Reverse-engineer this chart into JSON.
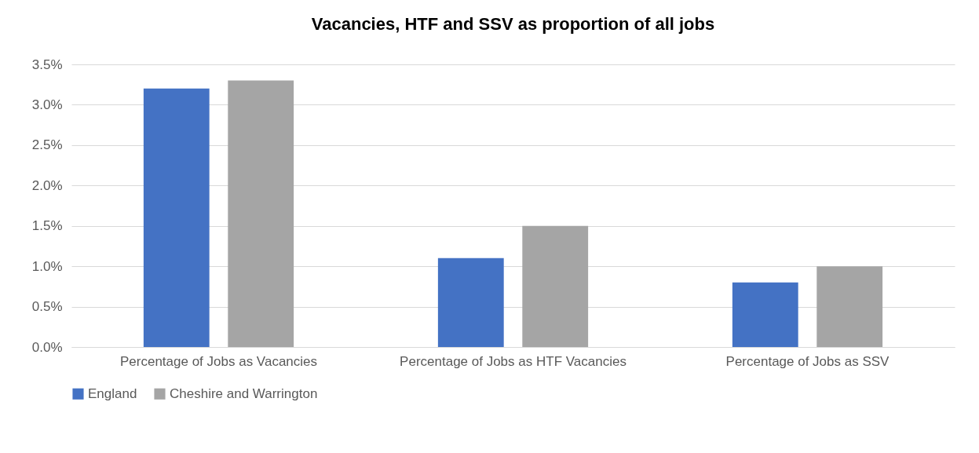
{
  "chart_data": {
    "type": "bar",
    "title": "Vacancies, HTF and SSV as proportion of all jobs",
    "categories": [
      "Percentage of Jobs as Vacancies",
      "Percentage of Jobs as HTF Vacancies",
      "Percentage of Jobs as SSV"
    ],
    "series": [
      {
        "name": "England",
        "color": "#4472c4",
        "values": [
          3.2,
          1.1,
          0.8
        ]
      },
      {
        "name": "Cheshire and Warrington",
        "color": "#a5a5a5",
        "values": [
          3.3,
          1.5,
          1.0
        ]
      }
    ],
    "ylim": [
      0,
      3.5
    ],
    "yticks": [
      {
        "value": 0,
        "label": "0.0%"
      },
      {
        "value": 0.5,
        "label": "0.5%"
      },
      {
        "value": 1,
        "label": "1.0%"
      },
      {
        "value": 1.5,
        "label": "1.5%"
      },
      {
        "value": 2,
        "label": "2.0%"
      },
      {
        "value": 2.5,
        "label": "2.5%"
      },
      {
        "value": 3,
        "label": "3.0%"
      },
      {
        "value": 3.5,
        "label": "3.5%"
      }
    ],
    "grid": "y",
    "legend": "bottom"
  }
}
